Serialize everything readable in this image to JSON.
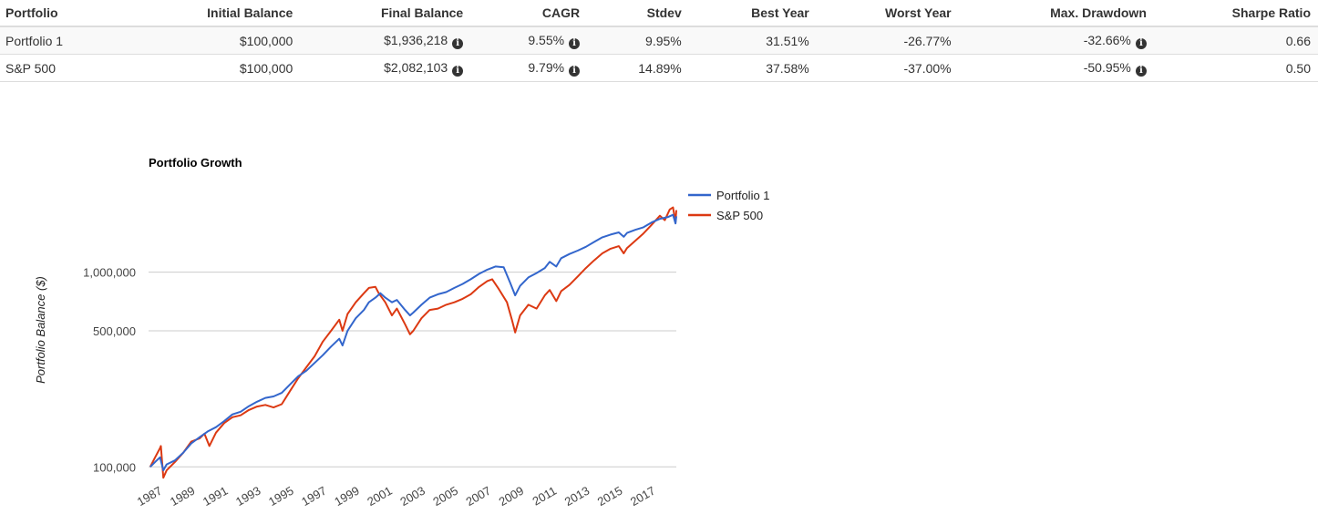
{
  "table": {
    "headers": [
      "Portfolio",
      "Initial Balance",
      "Final Balance",
      "CAGR",
      "Stdev",
      "Best Year",
      "Worst Year",
      "Max. Drawdown",
      "Sharpe Ratio"
    ],
    "info_icon": "info-circle-icon",
    "rows": [
      {
        "name": "Portfolio 1",
        "initial": "$100,000",
        "final": "$1,936,218",
        "cagr": "9.55%",
        "stdev": "9.95%",
        "best": "31.51%",
        "worst": "-26.77%",
        "drawdown": "-32.66%",
        "sharpe": "0.66"
      },
      {
        "name": "S&P 500",
        "initial": "$100,000",
        "final": "$2,082,103",
        "cagr": "9.79%",
        "stdev": "14.89%",
        "best": "37.58%",
        "worst": "-37.00%",
        "drawdown": "-50.95%",
        "sharpe": "0.50"
      }
    ]
  },
  "chart_data": {
    "type": "line",
    "title": "Portfolio Growth",
    "ylabel": "Portfolio Balance ($)",
    "xlabel": "",
    "y_scale": "log",
    "ylim": [
      80000,
      2600000
    ],
    "xlim": [
      1986.9,
      2019.0
    ],
    "y_ticks": [
      100000,
      500000,
      1000000
    ],
    "y_tick_labels": [
      "100,000",
      "500,000",
      "1,000,000"
    ],
    "x_tick_labels": [
      "1987",
      "1989",
      "1991",
      "1993",
      "1995",
      "1997",
      "1999",
      "2001",
      "2003",
      "2005",
      "2007",
      "2009",
      "2011",
      "2013",
      "2015",
      "2017"
    ],
    "grid": true,
    "legend_position": "right",
    "series": [
      {
        "name": "Portfolio 1",
        "color": "#3366cc",
        "points": [
          [
            1987.0,
            100000
          ],
          [
            1987.3,
            106000
          ],
          [
            1987.6,
            112000
          ],
          [
            1987.8,
            96000
          ],
          [
            1988.0,
            103000
          ],
          [
            1988.5,
            108000
          ],
          [
            1989.0,
            118000
          ],
          [
            1989.5,
            132000
          ],
          [
            1990.0,
            142000
          ],
          [
            1990.5,
            152000
          ],
          [
            1991.0,
            160000
          ],
          [
            1991.5,
            172000
          ],
          [
            1992.0,
            186000
          ],
          [
            1992.5,
            192000
          ],
          [
            1993.0,
            205000
          ],
          [
            1993.5,
            216000
          ],
          [
            1994.0,
            226000
          ],
          [
            1994.5,
            230000
          ],
          [
            1995.0,
            240000
          ],
          [
            1995.5,
            265000
          ],
          [
            1996.0,
            292000
          ],
          [
            1996.5,
            312000
          ],
          [
            1997.0,
            342000
          ],
          [
            1997.5,
            375000
          ],
          [
            1998.0,
            415000
          ],
          [
            1998.5,
            455000
          ],
          [
            1998.7,
            420000
          ],
          [
            1999.0,
            500000
          ],
          [
            1999.5,
            580000
          ],
          [
            2000.0,
            640000
          ],
          [
            2000.3,
            700000
          ],
          [
            2000.7,
            740000
          ],
          [
            2001.0,
            780000
          ],
          [
            2001.3,
            740000
          ],
          [
            2001.7,
            700000
          ],
          [
            2002.0,
            720000
          ],
          [
            2002.5,
            640000
          ],
          [
            2002.8,
            600000
          ],
          [
            2003.0,
            620000
          ],
          [
            2003.5,
            680000
          ],
          [
            2004.0,
            740000
          ],
          [
            2004.5,
            770000
          ],
          [
            2005.0,
            790000
          ],
          [
            2005.5,
            830000
          ],
          [
            2006.0,
            870000
          ],
          [
            2006.5,
            920000
          ],
          [
            2007.0,
            980000
          ],
          [
            2007.5,
            1030000
          ],
          [
            2008.0,
            1070000
          ],
          [
            2008.5,
            1060000
          ],
          [
            2008.9,
            880000
          ],
          [
            2009.2,
            760000
          ],
          [
            2009.5,
            850000
          ],
          [
            2010.0,
            940000
          ],
          [
            2010.5,
            990000
          ],
          [
            2011.0,
            1050000
          ],
          [
            2011.3,
            1130000
          ],
          [
            2011.7,
            1070000
          ],
          [
            2012.0,
            1180000
          ],
          [
            2012.5,
            1240000
          ],
          [
            2013.0,
            1290000
          ],
          [
            2013.5,
            1350000
          ],
          [
            2014.0,
            1430000
          ],
          [
            2014.5,
            1510000
          ],
          [
            2015.0,
            1560000
          ],
          [
            2015.5,
            1600000
          ],
          [
            2015.8,
            1520000
          ],
          [
            2016.0,
            1590000
          ],
          [
            2016.5,
            1650000
          ],
          [
            2017.0,
            1700000
          ],
          [
            2017.5,
            1800000
          ],
          [
            2018.0,
            1880000
          ],
          [
            2018.5,
            1920000
          ],
          [
            2018.8,
            1970000
          ],
          [
            2018.95,
            1780000
          ],
          [
            2019.0,
            1936218
          ]
        ]
      },
      {
        "name": "S&P 500",
        "color": "#dc3912",
        "points": [
          [
            1987.0,
            100000
          ],
          [
            1987.3,
            112000
          ],
          [
            1987.6,
            125000
          ],
          [
            1987.65,
            128000
          ],
          [
            1987.8,
            88000
          ],
          [
            1988.0,
            96000
          ],
          [
            1988.5,
            106000
          ],
          [
            1989.0,
            118000
          ],
          [
            1989.5,
            135000
          ],
          [
            1990.0,
            140000
          ],
          [
            1990.3,
            148000
          ],
          [
            1990.6,
            128000
          ],
          [
            1991.0,
            150000
          ],
          [
            1991.5,
            168000
          ],
          [
            1992.0,
            180000
          ],
          [
            1992.5,
            184000
          ],
          [
            1993.0,
            196000
          ],
          [
            1993.5,
            204000
          ],
          [
            1994.0,
            208000
          ],
          [
            1994.5,
            202000
          ],
          [
            1995.0,
            210000
          ],
          [
            1995.5,
            245000
          ],
          [
            1996.0,
            285000
          ],
          [
            1996.5,
            325000
          ],
          [
            1997.0,
            370000
          ],
          [
            1997.5,
            440000
          ],
          [
            1998.0,
            500000
          ],
          [
            1998.5,
            570000
          ],
          [
            1998.7,
            500000
          ],
          [
            1999.0,
            610000
          ],
          [
            1999.5,
            700000
          ],
          [
            2000.0,
            780000
          ],
          [
            2000.3,
            830000
          ],
          [
            2000.7,
            840000
          ],
          [
            2000.9,
            780000
          ],
          [
            2001.3,
            700000
          ],
          [
            2001.7,
            600000
          ],
          [
            2002.0,
            650000
          ],
          [
            2002.5,
            540000
          ],
          [
            2002.8,
            480000
          ],
          [
            2003.0,
            500000
          ],
          [
            2003.5,
            580000
          ],
          [
            2004.0,
            640000
          ],
          [
            2004.5,
            650000
          ],
          [
            2005.0,
            680000
          ],
          [
            2005.5,
            700000
          ],
          [
            2006.0,
            730000
          ],
          [
            2006.5,
            770000
          ],
          [
            2007.0,
            840000
          ],
          [
            2007.5,
            900000
          ],
          [
            2007.8,
            920000
          ],
          [
            2008.2,
            820000
          ],
          [
            2008.7,
            700000
          ],
          [
            2009.0,
            570000
          ],
          [
            2009.2,
            490000
          ],
          [
            2009.5,
            600000
          ],
          [
            2010.0,
            680000
          ],
          [
            2010.5,
            650000
          ],
          [
            2011.0,
            760000
          ],
          [
            2011.3,
            810000
          ],
          [
            2011.7,
            710000
          ],
          [
            2012.0,
            800000
          ],
          [
            2012.5,
            860000
          ],
          [
            2013.0,
            950000
          ],
          [
            2013.5,
            1050000
          ],
          [
            2014.0,
            1150000
          ],
          [
            2014.5,
            1250000
          ],
          [
            2015.0,
            1320000
          ],
          [
            2015.5,
            1360000
          ],
          [
            2015.8,
            1250000
          ],
          [
            2016.0,
            1330000
          ],
          [
            2016.5,
            1450000
          ],
          [
            2017.0,
            1580000
          ],
          [
            2017.5,
            1750000
          ],
          [
            2018.0,
            1950000
          ],
          [
            2018.3,
            1850000
          ],
          [
            2018.6,
            2100000
          ],
          [
            2018.8,
            2150000
          ],
          [
            2018.95,
            1800000
          ],
          [
            2019.0,
            2082103
          ]
        ]
      }
    ]
  }
}
